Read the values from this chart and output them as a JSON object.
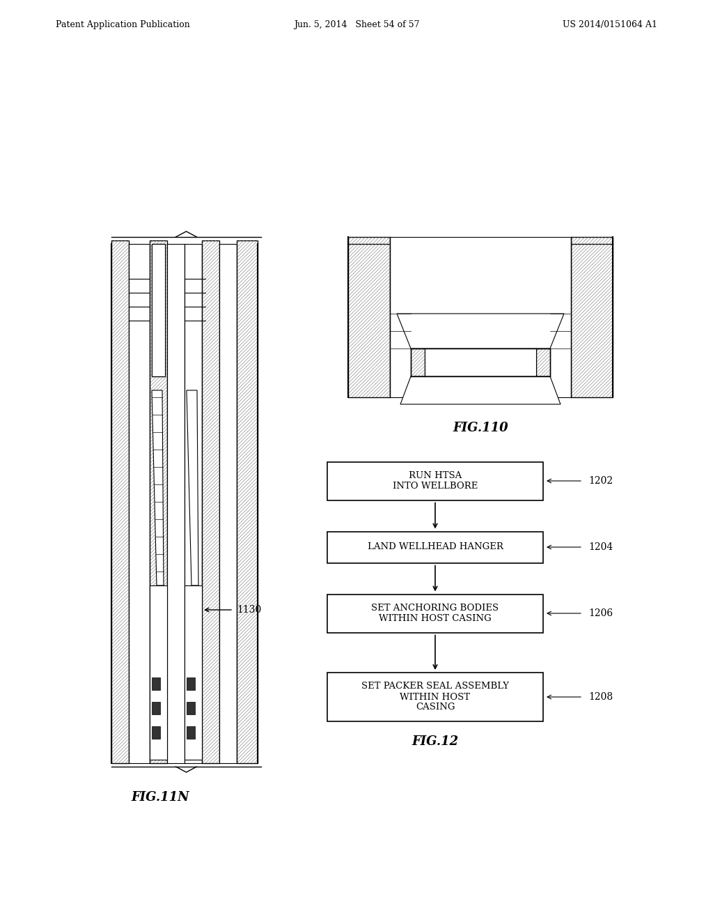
{
  "bg_color": "#ffffff",
  "header_left": "Patent Application Publication",
  "header_center": "Jun. 5, 2014   Sheet 54 of 57",
  "header_right": "US 2014/0151064 A1",
  "fig11n_label": "FIG.11N",
  "fig110_label": "FIG.110",
  "fig12_label": "FIG.12",
  "label_1130": "1130",
  "label_1202": "1202",
  "label_1204": "1204",
  "label_1206": "1206",
  "label_1208": "1208",
  "box1_text": "RUN HTSA\nINTO WELLBORE",
  "box2_text": "LAND WELLHEAD HANGER",
  "box3_text": "SET ANCHORING BODIES\nWITHIN HOST CASING",
  "box4_text": "SET PACKER SEAL ASSEMBLY\nWITHIN HOST\nCASING"
}
